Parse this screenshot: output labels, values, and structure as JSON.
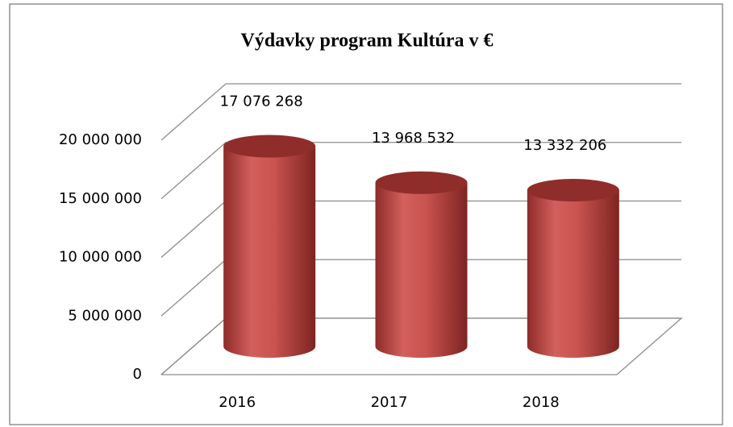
{
  "chart_data": {
    "type": "cylinder",
    "title": "Výdavky program Kultúra v €",
    "categories": [
      "2016",
      "2017",
      "2018"
    ],
    "values": [
      17076268,
      13968532,
      13332206
    ],
    "value_labels": [
      "17 076 268",
      "13 968 532",
      "13 332 206"
    ],
    "color": "#c0504d",
    "ylim": [
      0,
      20000000
    ],
    "yticks": [
      0,
      {
        "value": 5000000,
        "label": "5 000 000"
      },
      {
        "value": 10000000,
        "label": "10 000 000"
      },
      {
        "value": 15000000,
        "label": "15 000 000"
      },
      {
        "value": 20000000,
        "label": "20 000 000"
      }
    ],
    "grid": true
  }
}
